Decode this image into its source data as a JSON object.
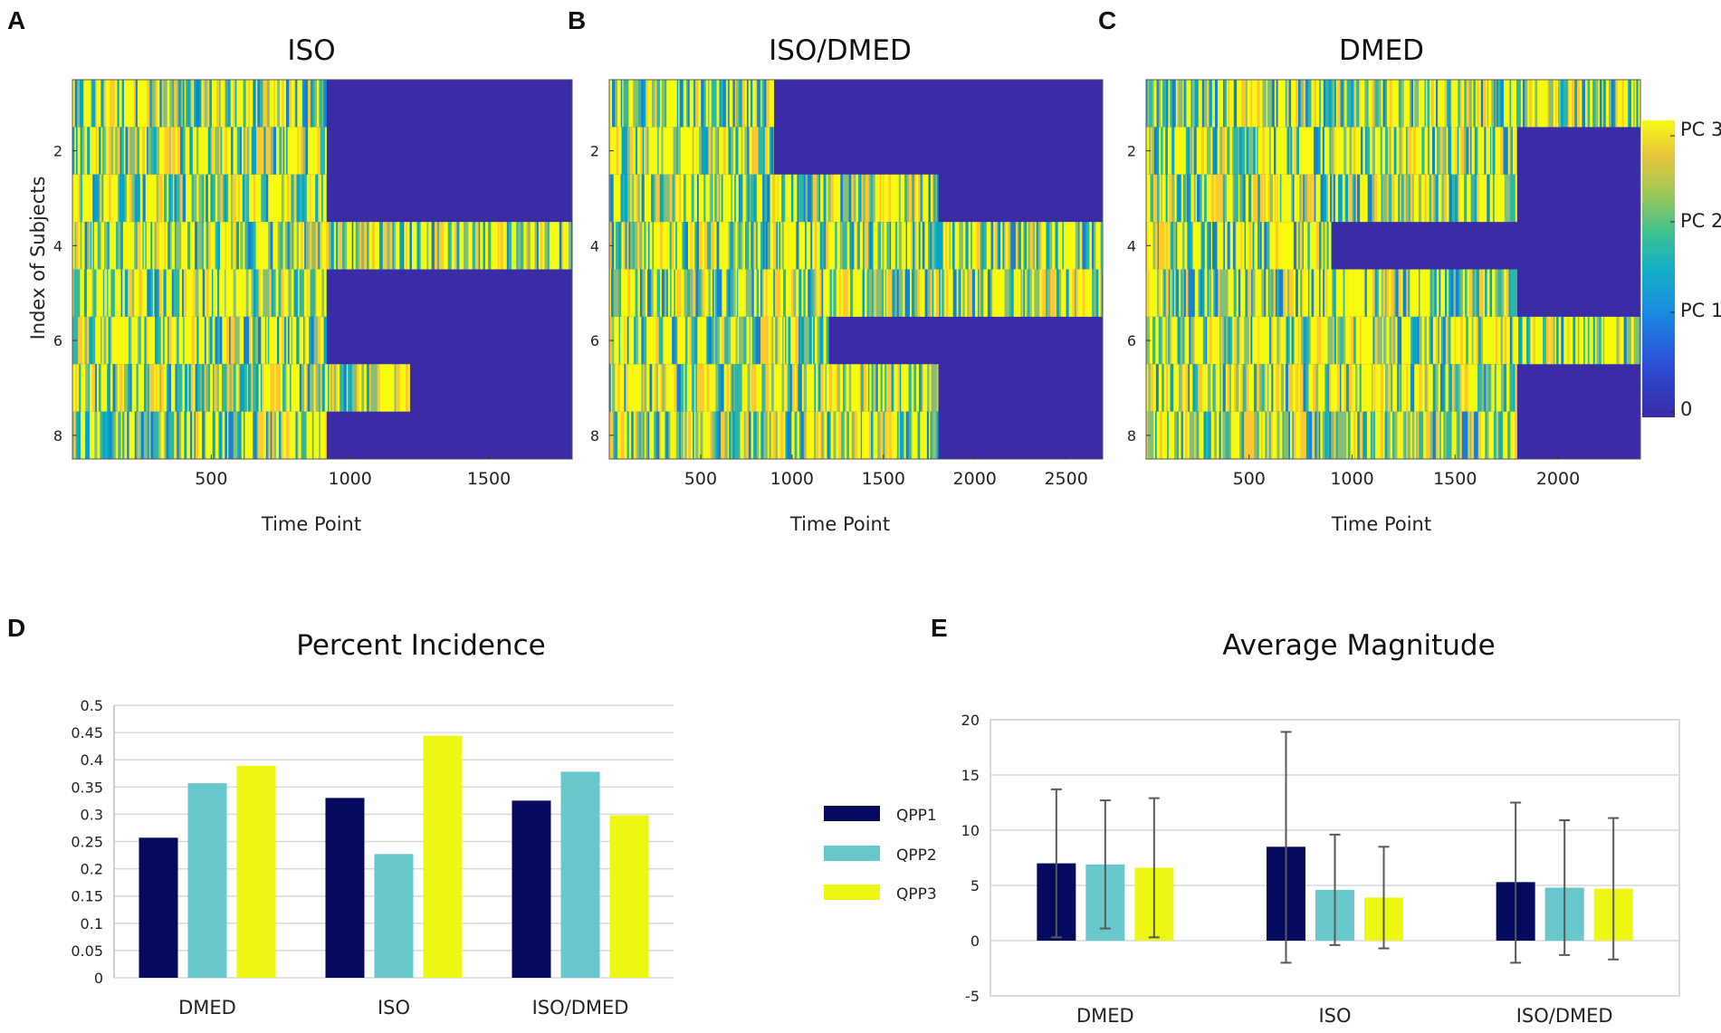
{
  "chart_data": [
    {
      "panel": "A",
      "type": "heatmap",
      "title": "ISO",
      "xlabel": "Time Point",
      "ylabel": "Index of Subjects",
      "xlim": [
        0,
        1800
      ],
      "xticks": [
        500,
        1000,
        1500
      ],
      "yticks": [
        2,
        4,
        6,
        8
      ],
      "rows": 8,
      "row_lengths": [
        915,
        915,
        915,
        1800,
        915,
        915,
        1215,
        915
      ]
    },
    {
      "panel": "B",
      "type": "heatmap",
      "title": "ISO/DMED",
      "xlabel": "Time Point",
      "ylabel": "",
      "xlim": [
        0,
        2700
      ],
      "xticks": [
        500,
        1000,
        1500,
        2000,
        2500
      ],
      "yticks": [
        2,
        4,
        6,
        8
      ],
      "rows": 8,
      "row_lengths": [
        900,
        900,
        1800,
        2700,
        2700,
        1200,
        1800,
        1800
      ]
    },
    {
      "panel": "C",
      "type": "heatmap",
      "title": "DMED",
      "xlabel": "Time Point",
      "ylabel": "",
      "xlim": [
        0,
        2400
      ],
      "xticks": [
        500,
        1000,
        1500,
        2000
      ],
      "yticks": [
        2,
        4,
        6,
        8
      ],
      "rows": 8,
      "row_lengths": [
        2400,
        1800,
        1800,
        900,
        1800,
        2400,
        1800,
        1800
      ]
    },
    {
      "panel": "D",
      "type": "bar",
      "title": "Percent Incidence",
      "categories": [
        "DMED",
        "ISO",
        "ISO/DMED"
      ],
      "series": [
        {
          "name": "QPP1",
          "values": [
            0.257,
            0.33,
            0.325
          ]
        },
        {
          "name": "QPP2",
          "values": [
            0.357,
            0.227,
            0.378
          ]
        },
        {
          "name": "QPP3",
          "values": [
            0.389,
            0.444,
            0.298
          ]
        }
      ],
      "ylim": [
        0,
        0.5
      ],
      "yticks": [
        "0",
        "0.05",
        "0.1",
        "0.15",
        "0.2",
        "0.25",
        "0.3",
        "0.35",
        "0.4",
        "0.45",
        "0.5"
      ],
      "legend": "right"
    },
    {
      "panel": "E",
      "type": "bar",
      "title": "Average Magnitude",
      "categories": [
        "DMED",
        "ISO",
        "ISO/DMED"
      ],
      "series": [
        {
          "name": "QPP1",
          "values": [
            7.0,
            8.5,
            5.3
          ],
          "err_low": [
            0.3,
            -2.0,
            -2.0
          ],
          "err_high": [
            13.7,
            18.9,
            12.5
          ]
        },
        {
          "name": "QPP2",
          "values": [
            6.9,
            4.6,
            4.8
          ],
          "err_low": [
            1.1,
            -0.4,
            -1.3
          ],
          "err_high": [
            12.7,
            9.6,
            10.9
          ]
        },
        {
          "name": "QPP3",
          "values": [
            6.6,
            3.9,
            4.7
          ],
          "err_low": [
            0.3,
            -0.7,
            -1.7
          ],
          "err_high": [
            12.9,
            8.5,
            11.1
          ]
        }
      ],
      "ylim": [
        -5,
        20
      ],
      "yticks": [
        "-5",
        "0",
        "5",
        "10",
        "15",
        "20"
      ]
    }
  ],
  "colorbar": {
    "labels": [
      "PC 3",
      "PC 2",
      "PC 1",
      "0"
    ]
  },
  "colors": {
    "QPP1": "#050a5e",
    "QPP2": "#67c7cd",
    "QPP3": "#eef711",
    "empty": "#3a2ba6",
    "parula": [
      "#352a87",
      "#0f5cdd",
      "#1481d6",
      "#06a4ca",
      "#2eb7a4",
      "#87bf77",
      "#d1bb59",
      "#fec832",
      "#f9fb0e"
    ]
  }
}
